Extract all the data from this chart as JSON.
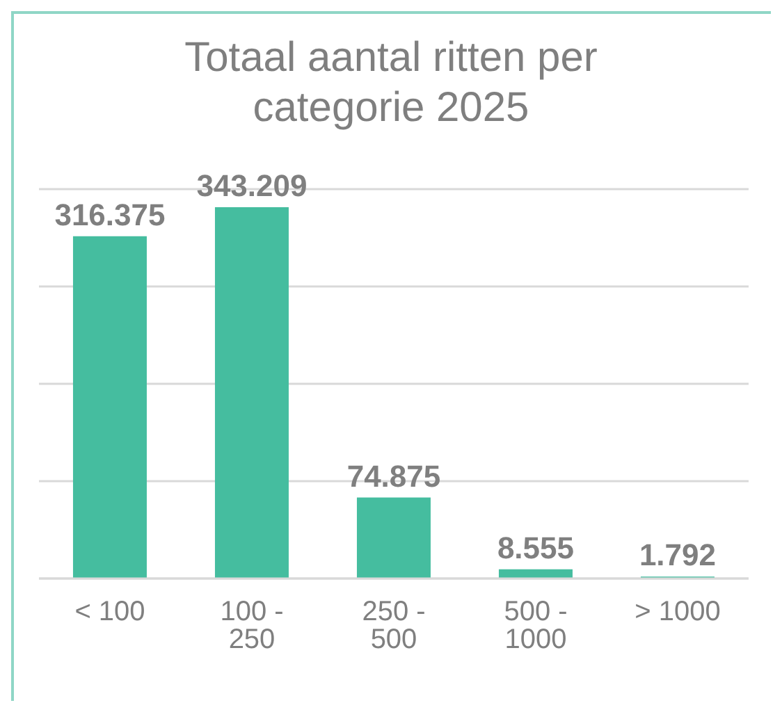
{
  "chart_data": {
    "type": "bar",
    "title": "Totaal aantal ritten per categorie 2025",
    "categories": [
      "< 100",
      "100 - 250",
      "250 - 500",
      "500 - 1000",
      "> 1000"
    ],
    "values": [
      316375,
      343209,
      74875,
      8555,
      1792
    ],
    "value_labels": [
      "316.375",
      "343.209",
      "74.875",
      "8.555",
      "1.792"
    ],
    "color": "#45bd9f",
    "grid": "y",
    "tick_labels": "x"
  }
}
